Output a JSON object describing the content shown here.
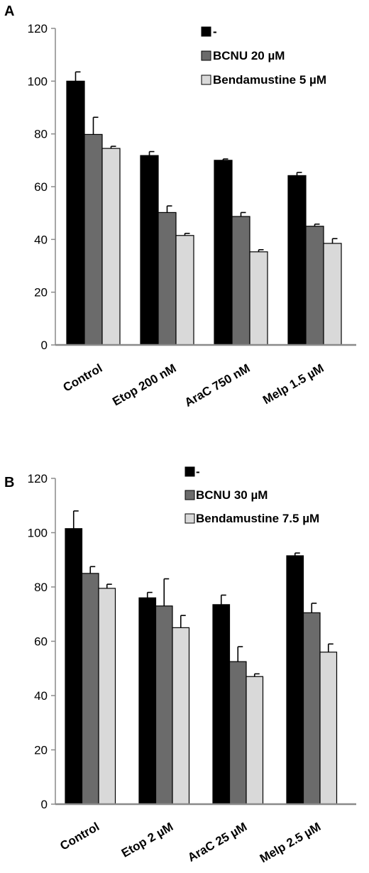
{
  "colors": {
    "black": "#000000",
    "grey": "#6b6b6b",
    "light": "#d9d9d9",
    "axis": "#8a8a8a"
  },
  "chart_data": [
    {
      "panel": "A",
      "type": "bar",
      "title": "",
      "xlabel": "",
      "ylabel": "",
      "ylim": [
        0,
        120
      ],
      "yticks": [
        0,
        20,
        40,
        60,
        80,
        100,
        120
      ],
      "categories": [
        "Control",
        "Etop 200 nM",
        "AraC 750 nM",
        "Melp 1.5 µM"
      ],
      "legend_position": "top-right",
      "series": [
        {
          "name": "-",
          "color": "#000000",
          "values": [
            100,
            71.8,
            70.0,
            64.2
          ],
          "errors": [
            3.5,
            1.5,
            0.5,
            1.2
          ]
        },
        {
          "name": "BCNU 20 µM",
          "color": "#6b6b6b",
          "values": [
            79.8,
            50.2,
            48.7,
            45.0
          ],
          "errors": [
            6.5,
            2.5,
            1.5,
            0.8
          ]
        },
        {
          "name": "Bendamustine 5 µM",
          "color": "#d9d9d9",
          "values": [
            74.5,
            41.5,
            35.3,
            38.5
          ],
          "errors": [
            0.8,
            0.8,
            0.8,
            1.8
          ]
        }
      ]
    },
    {
      "panel": "B",
      "type": "bar",
      "title": "",
      "xlabel": "",
      "ylabel": "",
      "ylim": [
        0,
        120
      ],
      "yticks": [
        0,
        20,
        40,
        60,
        80,
        100,
        120
      ],
      "categories": [
        "Control",
        "Etop 2 µM",
        "AraC 25 µM",
        "Melp 2.5 µM"
      ],
      "legend_position": "top-right",
      "series": [
        {
          "name": "-",
          "color": "#000000",
          "values": [
            101.5,
            76.0,
            73.5,
            91.5
          ],
          "errors": [
            6.5,
            2.0,
            3.5,
            1.0
          ]
        },
        {
          "name": "BCNU 30 µM",
          "color": "#6b6b6b",
          "values": [
            85.0,
            73.0,
            52.5,
            70.5
          ],
          "errors": [
            2.5,
            10.0,
            5.5,
            3.5
          ]
        },
        {
          "name": "Bendamustine 7.5 µM",
          "color": "#d9d9d9",
          "values": [
            79.5,
            65.0,
            47.0,
            56.0
          ],
          "errors": [
            1.5,
            4.5,
            1.0,
            3.0
          ]
        }
      ]
    }
  ]
}
